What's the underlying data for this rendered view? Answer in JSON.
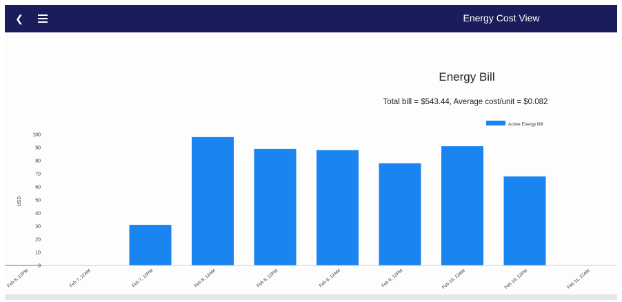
{
  "header": {
    "title": "Energy Cost View",
    "back_icon": "chevron-left-icon",
    "menu_icon": "hamburger-menu-icon",
    "background": "#1b1c5c"
  },
  "chart_data": {
    "type": "bar",
    "title": "Energy Bill",
    "subtitle": "Total bill = $543.44, Average cost/unit = $0.082",
    "ylabel": "USD",
    "xlabel": "",
    "ylim": [
      0,
      100
    ],
    "yticks": [
      0,
      10,
      20,
      30,
      40,
      50,
      60,
      70,
      80,
      90,
      100
    ],
    "categories": [
      "Feb 6, 12PM",
      "Feb 7, 12AM",
      "Feb 7, 12PM",
      "Feb 8, 12AM",
      "Feb 8, 12PM",
      "Feb 9, 12AM",
      "Feb 9, 12PM",
      "Feb 10, 12AM",
      "Feb 10, 12PM",
      "Feb 11, 12AM"
    ],
    "series": [
      {
        "name": "Active Energy Bill",
        "color": "#1a85f0",
        "values": [
          0.3,
          0.3,
          31,
          98,
          89,
          88,
          78,
          91,
          68,
          0.3
        ]
      }
    ],
    "legend": "top-right",
    "grid": false
  }
}
